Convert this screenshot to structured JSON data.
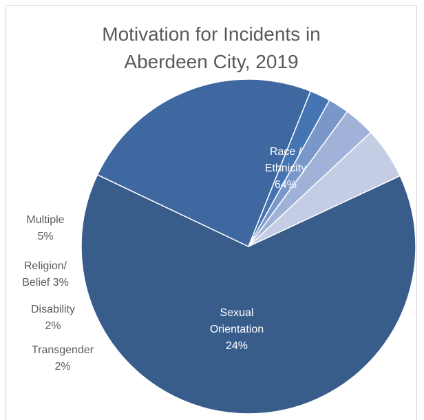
{
  "chart_data": {
    "type": "pie",
    "title_lines": [
      "Motivation for Incidents in",
      "Aberdeen City, 2019"
    ],
    "slices": [
      {
        "name": "Race / Ethnicity",
        "value": 64,
        "label_lines": [
          "Race /",
          "Ethnicity",
          "64%"
        ],
        "color": "#395d8b",
        "label_color": "#ffffff",
        "label_position": "inside"
      },
      {
        "name": "Sexual Orientation",
        "value": 24,
        "label_lines": [
          "Sexual",
          "Orientation",
          "24%"
        ],
        "color": "#3f68a0",
        "label_color": "#ffffff",
        "label_position": "inside"
      },
      {
        "name": "Transgender",
        "value": 2,
        "label_lines": [
          "Transgender",
          "2%"
        ],
        "color": "#4574b2",
        "label_color": "#595959",
        "label_position": "outside"
      },
      {
        "name": "Disability",
        "value": 2,
        "label_lines": [
          "Disability",
          "2%"
        ],
        "color": "#7a97c9",
        "label_color": "#595959",
        "label_position": "outside"
      },
      {
        "name": "Religion/ Belief",
        "value": 3,
        "label_lines": [
          "Religion/",
          "Belief 3%"
        ],
        "color": "#a0b2d7",
        "label_color": "#595959",
        "label_position": "outside"
      },
      {
        "name": "Multiple",
        "value": 5,
        "label_lines": [
          "Multiple",
          "5%"
        ],
        "color": "#c4cde3",
        "label_color": "#595959",
        "label_position": "outside"
      }
    ],
    "start_angle_deg": 65.0,
    "direction": "clockwise"
  }
}
